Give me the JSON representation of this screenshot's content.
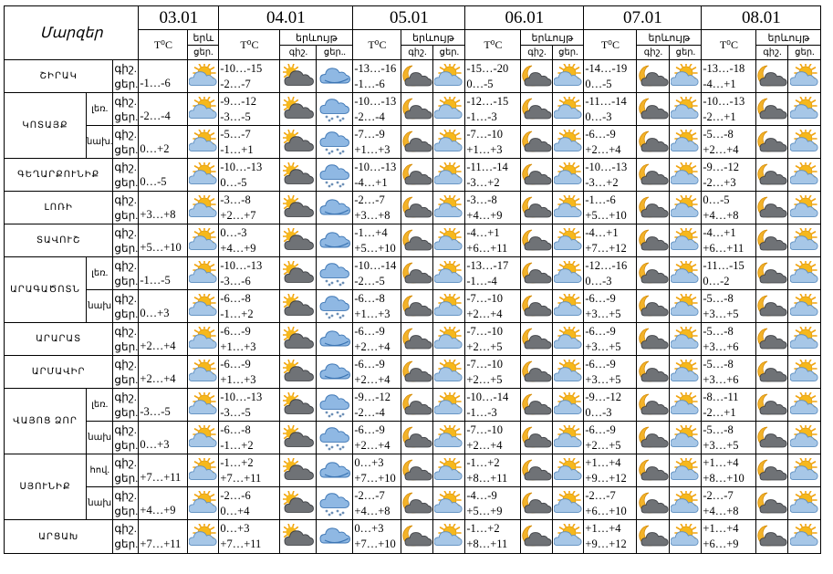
{
  "header": {
    "marz_label": "Մարզեր",
    "temp_label": "T⁰C",
    "weather_label": "երևույթ",
    "weather_label_cut": "երև",
    "day_label": "ցեր.",
    "night_label": "գիշ.",
    "day_label_cut": "ցեր..",
    "dates": [
      "03.01",
      "04.01",
      "05.01",
      "06.01",
      "07.01",
      "08.01"
    ]
  },
  "row_labels": {
    "night": "գիշ.",
    "day": "ցեր."
  },
  "rows": [
    {
      "region": "ՇԻՐԱԿ",
      "sub": "",
      "temps": [
        {
          "single": "-1…-6"
        },
        {
          "night": "-10…-15",
          "day": "-2…-7"
        },
        {
          "night": "-13…-16",
          "day": "-1…-6"
        },
        {
          "night": "-15…-20",
          "day": "0…-5"
        },
        {
          "night": "-14…-19",
          "day": "0…-5"
        },
        {
          "night": "-13…-18",
          "day": "-4…+1"
        }
      ],
      "icons": [
        [
          "partly-sunny"
        ],
        [
          "cloudy-sun",
          "rain-cloud"
        ],
        [
          "moon-cloud",
          "partly-sunny"
        ],
        [
          "moon-cloud",
          "partly-sunny"
        ],
        [
          "moon-cloud",
          "partly-sunny"
        ],
        [
          "moon-cloud",
          "partly-sunny"
        ]
      ]
    },
    {
      "region": "ԿՈՏԱՅՔ",
      "sub": "լեռ.",
      "temps": [
        {
          "single": "-2…-4"
        },
        {
          "night": "-9…-12",
          "day": "-3…-5"
        },
        {
          "night": "-10…-13",
          "day": "-2…-4"
        },
        {
          "night": "-12…-15",
          "day": "-1…-3"
        },
        {
          "night": "-11…-14",
          "day": "0…-3"
        },
        {
          "night": "-10…-13",
          "day": "-2…+1"
        }
      ],
      "icons": [
        [
          "partly-sunny"
        ],
        [
          "cloudy-sun",
          "snow-cloud"
        ],
        [
          "moon-cloud",
          "partly-sunny"
        ],
        [
          "moon-cloud",
          "partly-sunny"
        ],
        [
          "moon-cloud",
          "partly-sunny"
        ],
        [
          "moon-cloud",
          "partly-sunny"
        ]
      ]
    },
    {
      "region": "ԿՈՏԱՅՔ",
      "sub": "նախ.",
      "temps": [
        {
          "single": "0…+2"
        },
        {
          "night": "-5…-7",
          "day": "-1…+1"
        },
        {
          "night": "-7…-9",
          "day": "+1…+3"
        },
        {
          "night": "-7…-10",
          "day": "+1…+3"
        },
        {
          "night": "-6…-9",
          "day": "+2…+4"
        },
        {
          "night": "-5…-8",
          "day": "+2…+4"
        }
      ],
      "icons": [
        [
          "partly-sunny"
        ],
        [
          "cloudy-sun",
          "snow-cloud"
        ],
        [
          "moon-cloud",
          "partly-sunny"
        ],
        [
          "moon-cloud",
          "partly-sunny"
        ],
        [
          "moon-cloud",
          "partly-sunny"
        ],
        [
          "moon-cloud",
          "partly-sunny"
        ]
      ]
    },
    {
      "region": "ԳԵՂԱՐՔՈՒՆԻՔ",
      "sub": "",
      "temps": [
        {
          "single": "0…-5"
        },
        {
          "night": "-10…-13",
          "day": "0…-5"
        },
        {
          "night": "-10…-13",
          "day": "-4…+1"
        },
        {
          "night": "-11…-14",
          "day": "-3…+2"
        },
        {
          "night": "-10…-13",
          "day": "-3…+2"
        },
        {
          "night": "-9…-12",
          "day": "-2…+3"
        }
      ],
      "icons": [
        [
          "partly-sunny"
        ],
        [
          "cloudy-sun",
          "snow-cloud"
        ],
        [
          "moon-cloud",
          "partly-sunny"
        ],
        [
          "moon-cloud",
          "partly-sunny"
        ],
        [
          "moon-cloud",
          "partly-sunny"
        ],
        [
          "moon-cloud",
          "partly-sunny"
        ]
      ]
    },
    {
      "region": "ԼՈՌԻ",
      "sub": "",
      "temps": [
        {
          "single": "+3…+8"
        },
        {
          "night": "-3…-8",
          "day": "+2…+7"
        },
        {
          "night": "-2…-7",
          "day": "+3…+8"
        },
        {
          "night": "-3…-8",
          "day": "+4…+9"
        },
        {
          "night": "-1…-6",
          "day": "+5…+10"
        },
        {
          "night": "0…-5",
          "day": "+4…+8"
        }
      ],
      "icons": [
        [
          "partly-sunny"
        ],
        [
          "cloudy-sun",
          "rain-cloud"
        ],
        [
          "moon-cloud",
          "partly-sunny"
        ],
        [
          "moon-cloud",
          "partly-sunny"
        ],
        [
          "moon-cloud",
          "partly-sunny"
        ],
        [
          "moon-cloud",
          "partly-sunny"
        ]
      ]
    },
    {
      "region": "ՏԱՎՈՒՇ",
      "sub": "",
      "temps": [
        {
          "single": "+5…+10"
        },
        {
          "night": "0…-3",
          "day": "+4…+9"
        },
        {
          "night": "-1…+4",
          "day": "+5…+10"
        },
        {
          "night": "-4…+1",
          "day": "+6…+11"
        },
        {
          "night": "-4…+1",
          "day": "+7…+12"
        },
        {
          "night": "-4…+1",
          "day": "+6…+11"
        }
      ],
      "icons": [
        [
          "partly-sunny"
        ],
        [
          "cloudy-sun",
          "rain-cloud"
        ],
        [
          "moon-cloud",
          "partly-sunny"
        ],
        [
          "moon-cloud",
          "partly-sunny"
        ],
        [
          "moon-cloud",
          "partly-sunny"
        ],
        [
          "moon-cloud",
          "partly-sunny"
        ]
      ]
    },
    {
      "region": "ԱՐԱԳԱԾՈՏՆ",
      "sub": "լեռ.",
      "temps": [
        {
          "single": "-1…-5"
        },
        {
          "night": "-10…-13",
          "day": "-3…-6"
        },
        {
          "night": "-10…-14",
          "day": "-2…-5"
        },
        {
          "night": "-13…-17",
          "day": "-1…-4"
        },
        {
          "night": "-12…-16",
          "day": "0…-3"
        },
        {
          "night": "-11…-15",
          "day": "0…-2"
        }
      ],
      "icons": [
        [
          "partly-sunny"
        ],
        [
          "cloudy-sun",
          "snow-cloud"
        ],
        [
          "moon-cloud",
          "partly-sunny"
        ],
        [
          "moon-cloud",
          "partly-sunny"
        ],
        [
          "moon-cloud",
          "partly-sunny"
        ],
        [
          "moon-cloud",
          "partly-sunny"
        ]
      ]
    },
    {
      "region": "ԱՐԱԳԱԾՈՏՆ",
      "sub": "նախ",
      "temps": [
        {
          "single": "0…+3"
        },
        {
          "night": "-6…-8",
          "day": "-1…+2"
        },
        {
          "night": "-6…-8",
          "day": "+1…+3"
        },
        {
          "night": "-7…-10",
          "day": "+2…+4"
        },
        {
          "night": "-6…-9",
          "day": "+3…+5"
        },
        {
          "night": "-5…-8",
          "day": "+3…+5"
        }
      ],
      "icons": [
        [
          "partly-sunny"
        ],
        [
          "cloudy-sun",
          "snow-cloud"
        ],
        [
          "moon-cloud",
          "partly-sunny"
        ],
        [
          "moon-cloud",
          "partly-sunny"
        ],
        [
          "moon-cloud",
          "partly-sunny"
        ],
        [
          "moon-cloud",
          "partly-sunny"
        ]
      ]
    },
    {
      "region": "ԱՐԱՐԱՏ",
      "sub": "",
      "temps": [
        {
          "single": "+2…+4"
        },
        {
          "night": "-6…-9",
          "day": "+1…+3"
        },
        {
          "night": "-6…-9",
          "day": "+2…+4"
        },
        {
          "night": "-7…-10",
          "day": "+2…+5"
        },
        {
          "night": "-6…-9",
          "day": "+3…+5"
        },
        {
          "night": "-5…-8",
          "day": "+3…+6"
        }
      ],
      "icons": [
        [
          "partly-sunny"
        ],
        [
          "cloudy-sun",
          "rain-cloud"
        ],
        [
          "moon-cloud",
          "partly-sunny"
        ],
        [
          "moon-cloud",
          "partly-sunny"
        ],
        [
          "moon-cloud",
          "partly-sunny"
        ],
        [
          "moon-cloud",
          "partly-sunny"
        ]
      ]
    },
    {
      "region": "ԱՐՄԱՎԻՐ",
      "sub": "",
      "temps": [
        {
          "single": "+2…+4"
        },
        {
          "night": "-6…-9",
          "day": "+1…+3"
        },
        {
          "night": "-6…-9",
          "day": "+2…+4"
        },
        {
          "night": "-7…-10",
          "day": "+2…+5"
        },
        {
          "night": "-6…-9",
          "day": "+3…+5"
        },
        {
          "night": "-5…-8",
          "day": "+3…+6"
        }
      ],
      "icons": [
        [
          "partly-sunny"
        ],
        [
          "cloudy-sun",
          "rain-cloud"
        ],
        [
          "moon-cloud",
          "partly-sunny"
        ],
        [
          "moon-cloud",
          "partly-sunny"
        ],
        [
          "moon-cloud",
          "partly-sunny"
        ],
        [
          "moon-cloud",
          "partly-sunny"
        ]
      ]
    },
    {
      "region": "ՎԱՅՈՑ ՁՈՐ",
      "sub": "լեռ.",
      "temps": [
        {
          "single": "-3…-5"
        },
        {
          "night": "-10…-13",
          "day": "-3…-5"
        },
        {
          "night": "-9…-12",
          "day": "-2…-4"
        },
        {
          "night": "-10…-14",
          "day": "-1…-3"
        },
        {
          "night": "-9…-12",
          "day": "0…-3"
        },
        {
          "night": "-8…-11",
          "day": "-2…+1"
        }
      ],
      "icons": [
        [
          "partly-sunny"
        ],
        [
          "cloudy-sun",
          "snow-cloud"
        ],
        [
          "moon-cloud",
          "partly-sunny"
        ],
        [
          "moon-cloud",
          "partly-sunny"
        ],
        [
          "moon-cloud",
          "partly-sunny"
        ],
        [
          "moon-cloud",
          "partly-sunny"
        ]
      ]
    },
    {
      "region": "ՎԱՅՈՑ ՁՈՐ",
      "sub": "նախ",
      "temps": [
        {
          "single": "0…+3"
        },
        {
          "night": "-6…-8",
          "day": "-1…+2"
        },
        {
          "night": "-6…-9",
          "day": "+2…+4"
        },
        {
          "night": "-7…-10",
          "day": "+2…+4"
        },
        {
          "night": "-6…-9",
          "day": "+2…+5"
        },
        {
          "night": "-5…-8",
          "day": "+3…+5"
        }
      ],
      "icons": [
        [
          "partly-sunny"
        ],
        [
          "cloudy-sun",
          "snow-cloud"
        ],
        [
          "moon-cloud",
          "partly-sunny"
        ],
        [
          "moon-cloud",
          "partly-sunny"
        ],
        [
          "moon-cloud",
          "partly-sunny"
        ],
        [
          "moon-cloud",
          "partly-sunny"
        ]
      ]
    },
    {
      "region": "ՍՅՈՒՆԻՔ",
      "sub": "հով.",
      "temps": [
        {
          "single": "+7…+11"
        },
        {
          "night": "-1…+2",
          "day": "+7…+11"
        },
        {
          "night": "0…+3",
          "day": "+7…+10"
        },
        {
          "night": "-1…+2",
          "day": "+8…+11"
        },
        {
          "night": "+1…+4",
          "day": "+9…+12"
        },
        {
          "night": "+1…+4",
          "day": "+8…+10"
        }
      ],
      "icons": [
        [
          "partly-sunny"
        ],
        [
          "cloudy-sun",
          "rain-cloud"
        ],
        [
          "moon-cloud",
          "partly-sunny"
        ],
        [
          "moon-cloud",
          "partly-sunny"
        ],
        [
          "moon-cloud",
          "partly-sunny"
        ],
        [
          "moon-cloud",
          "partly-sunny"
        ]
      ]
    },
    {
      "region": "ՍՅՈՒՆԻՔ",
      "sub": "նախ",
      "temps": [
        {
          "single": "+4…+9"
        },
        {
          "night": "-2…-6",
          "day": "0…+4"
        },
        {
          "night": "-2…-7",
          "day": "+4…+8"
        },
        {
          "night": "-4…-9",
          "day": "+5…+9"
        },
        {
          "night": "-2…-7",
          "day": "+6…+10"
        },
        {
          "night": "-2…-7",
          "day": "+4…+8"
        }
      ],
      "icons": [
        [
          "partly-sunny"
        ],
        [
          "cloudy-sun",
          "snow-cloud"
        ],
        [
          "moon-cloud",
          "partly-sunny"
        ],
        [
          "moon-cloud",
          "partly-sunny"
        ],
        [
          "moon-cloud",
          "partly-sunny"
        ],
        [
          "moon-cloud",
          "partly-sunny"
        ]
      ]
    },
    {
      "region": "ԱՐՑԱԽ",
      "sub": "",
      "temps": [
        {
          "single": "+7…+11"
        },
        {
          "night": "0…+3",
          "day": "+7…+11"
        },
        {
          "night": "0…+3",
          "day": "+7…+10"
        },
        {
          "night": "-1…+2",
          "day": "+8…+11"
        },
        {
          "night": "+1…+4",
          "day": "+9…+12"
        },
        {
          "night": "+1…+4",
          "day": "+6…+9"
        }
      ],
      "icons": [
        [
          "partly-sunny"
        ],
        [
          "cloudy-sun",
          "rain-cloud"
        ],
        [
          "moon-cloud",
          "partly-sunny"
        ],
        [
          "moon-cloud",
          "partly-sunny"
        ],
        [
          "moon-cloud",
          "partly-sunny"
        ],
        [
          "moon-cloud",
          "partly-sunny"
        ]
      ]
    }
  ],
  "colors": {
    "sun": "#f6b81c",
    "cloud": "#a7c7e7",
    "dark_cloud": "#6f7276",
    "moon": "#f3b32a"
  }
}
